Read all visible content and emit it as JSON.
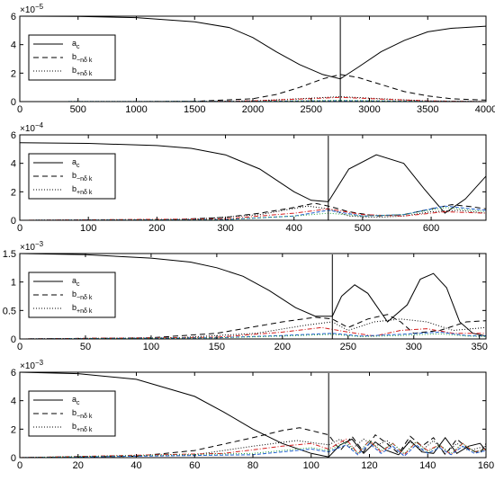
{
  "chart_data": [
    {
      "type": "line",
      "exponent": {
        "base": "×10",
        "power": "−5"
      },
      "xlim": [
        0,
        4000
      ],
      "ylim": [
        0,
        6
      ],
      "xticks": [
        "0",
        "500",
        "1000",
        "1500",
        "2000",
        "2500",
        "3000",
        "3500",
        "4000"
      ],
      "xtick_values": [
        0,
        500,
        1000,
        1500,
        2000,
        2500,
        3000,
        3500,
        4000
      ],
      "yticks": [
        "0",
        "2",
        "4",
        "6"
      ],
      "ytick_values": [
        0,
        2,
        4,
        6
      ],
      "marker_x": 2750,
      "legend": {
        "position": "center-left",
        "entries": [
          {
            "main": "a",
            "sub": "c",
            "style": "solid"
          },
          {
            "main": "b",
            "sub": "−nδ k",
            "style": "dashed"
          },
          {
            "main": "b",
            "sub": "+nδ k",
            "style": "dotted"
          }
        ]
      },
      "series": [
        {
          "color": "#000000",
          "dash": "none",
          "x": [
            0,
            500,
            1000,
            1500,
            1800,
            2000,
            2200,
            2400,
            2600,
            2750,
            2900,
            3100,
            3300,
            3500,
            3700,
            4000
          ],
          "y": [
            6.0,
            5.98,
            5.9,
            5.6,
            5.2,
            4.5,
            3.5,
            2.6,
            1.9,
            1.6,
            2.4,
            3.5,
            4.3,
            4.9,
            5.15,
            5.3
          ]
        },
        {
          "color": "#000000",
          "dash": "6,4",
          "x": [
            0,
            1000,
            1500,
            2000,
            2200,
            2400,
            2600,
            2750,
            2900,
            3100,
            3300,
            3500,
            3700,
            4000
          ],
          "y": [
            0,
            0,
            0.02,
            0.2,
            0.5,
            1.0,
            1.6,
            1.9,
            1.7,
            1.2,
            0.7,
            0.4,
            0.2,
            0.1
          ]
        },
        {
          "color": "#000000",
          "dash": "1,2",
          "x": [
            0,
            1500,
            2000,
            2400,
            2750,
            3100,
            3500,
            4000
          ],
          "y": [
            0,
            0,
            0.05,
            0.2,
            0.35,
            0.2,
            0.05,
            0
          ]
        },
        {
          "color": "#d42020",
          "dash": "5,2,1,2",
          "x": [
            0,
            1500,
            2000,
            2400,
            2750,
            3100,
            3500,
            4000
          ],
          "y": [
            0,
            0,
            0.05,
            0.18,
            0.3,
            0.18,
            0.05,
            0
          ]
        },
        {
          "color": "#2060d0",
          "dash": "4,2",
          "x": [
            0,
            2000,
            2750,
            3500,
            4000
          ],
          "y": [
            0,
            0.02,
            0.06,
            0.02,
            0
          ]
        },
        {
          "color": "#20a040",
          "dash": "1,2",
          "x": [
            0,
            2000,
            2750,
            3500,
            4000
          ],
          "y": [
            0,
            0.02,
            0.08,
            0.02,
            0
          ]
        }
      ]
    },
    {
      "type": "line",
      "exponent": {
        "base": "×10",
        "power": "−4"
      },
      "xlim": [
        0,
        680
      ],
      "ylim": [
        0,
        6
      ],
      "xticks": [
        "0",
        "100",
        "200",
        "300",
        "400",
        "500",
        "600"
      ],
      "xtick_values": [
        0,
        100,
        200,
        300,
        400,
        500,
        600
      ],
      "yticks": [
        "0",
        "2",
        "4",
        "6"
      ],
      "ytick_values": [
        0,
        2,
        4,
        6
      ],
      "marker_x": 450,
      "legend": {
        "position": "center-left",
        "entries": [
          {
            "main": "a",
            "sub": "c",
            "style": "solid"
          },
          {
            "main": "b",
            "sub": "−nδ k",
            "style": "dashed"
          },
          {
            "main": "b",
            "sub": "+nδ k",
            "style": "dotted"
          }
        ]
      },
      "series": [
        {
          "color": "#000000",
          "dash": "none",
          "x": [
            0,
            100,
            200,
            250,
            300,
            350,
            400,
            425,
            450,
            480,
            520,
            560,
            590,
            620,
            650,
            680
          ],
          "y": [
            5.45,
            5.4,
            5.25,
            5.05,
            4.6,
            3.6,
            2.0,
            1.4,
            1.3,
            3.6,
            4.6,
            4.0,
            2.2,
            0.5,
            1.5,
            3.1
          ]
        },
        {
          "color": "#000000",
          "dash": "6,4",
          "x": [
            0,
            200,
            300,
            350,
            400,
            430,
            450,
            480,
            520,
            560,
            600,
            630,
            660,
            680
          ],
          "y": [
            0,
            0,
            0.2,
            0.5,
            0.9,
            1.2,
            1.0,
            0.6,
            0.3,
            0.4,
            0.8,
            1.1,
            0.95,
            0.8
          ]
        },
        {
          "color": "#000000",
          "dash": "1,2",
          "x": [
            0,
            250,
            350,
            420,
            450,
            480,
            520,
            560,
            600,
            640,
            680
          ],
          "y": [
            0,
            0.05,
            0.4,
            1.0,
            0.8,
            0.3,
            0.2,
            0.3,
            0.6,
            0.7,
            0.5
          ]
        },
        {
          "color": "#d42020",
          "dash": "5,2,1,2",
          "x": [
            0,
            300,
            400,
            450,
            500,
            560,
            620,
            680
          ],
          "y": [
            0,
            0.1,
            0.5,
            0.8,
            0.4,
            0.3,
            0.6,
            0.5
          ]
        },
        {
          "color": "#2060d0",
          "dash": "4,2",
          "x": [
            0,
            300,
            400,
            450,
            500,
            560,
            620,
            680
          ],
          "y": [
            0,
            0.05,
            0.3,
            0.7,
            0.3,
            0.4,
            1.0,
            0.7
          ]
        },
        {
          "color": "#20a040",
          "dash": "1,2",
          "x": [
            0,
            300,
            400,
            450,
            500,
            560,
            620,
            680
          ],
          "y": [
            0,
            0.05,
            0.3,
            0.5,
            0.3,
            0.4,
            0.9,
            0.6
          ]
        }
      ]
    },
    {
      "type": "line",
      "exponent": {
        "base": "×10",
        "power": "−3"
      },
      "xlim": [
        0,
        355
      ],
      "ylim": [
        0,
        1.5
      ],
      "xticks": [
        "0",
        "50",
        "100",
        "150",
        "200",
        "250",
        "300",
        "350"
      ],
      "xtick_values": [
        0,
        50,
        100,
        150,
        200,
        250,
        300,
        350
      ],
      "yticks": [
        "0",
        "0.5",
        "1",
        "1.5"
      ],
      "ytick_values": [
        0,
        0.5,
        1,
        1.5
      ],
      "marker_x": 238,
      "legend": {
        "position": "center-left",
        "entries": [
          {
            "main": "a",
            "sub": "c",
            "style": "solid"
          },
          {
            "main": "b",
            "sub": "−nδ k",
            "style": "dashed"
          },
          {
            "main": "b",
            "sub": "+nδ k",
            "style": "dotted"
          }
        ]
      },
      "series": [
        {
          "color": "#000000",
          "dash": "none",
          "x": [
            0,
            50,
            100,
            130,
            150,
            170,
            190,
            210,
            225,
            238,
            245,
            255,
            265,
            280,
            295,
            305,
            315,
            325,
            335,
            345,
            355
          ],
          "y": [
            1.5,
            1.48,
            1.42,
            1.35,
            1.25,
            1.1,
            0.85,
            0.55,
            0.4,
            0.4,
            0.75,
            0.95,
            0.8,
            0.3,
            0.6,
            1.05,
            1.15,
            0.9,
            0.3,
            0.1,
            0.05
          ]
        },
        {
          "color": "#000000",
          "dash": "6,4",
          "x": [
            0,
            100,
            150,
            200,
            225,
            238,
            250,
            265,
            280,
            290,
            300,
            320,
            340,
            355
          ],
          "y": [
            0,
            0.02,
            0.1,
            0.3,
            0.38,
            0.35,
            0.2,
            0.35,
            0.43,
            0.3,
            0.1,
            0.15,
            0.3,
            0.32
          ]
        },
        {
          "color": "#000000",
          "dash": "1,2",
          "x": [
            0,
            120,
            180,
            220,
            238,
            250,
            270,
            290,
            310,
            330,
            355
          ],
          "y": [
            0,
            0.02,
            0.1,
            0.25,
            0.3,
            0.15,
            0.3,
            0.35,
            0.3,
            0.15,
            0.2
          ]
        },
        {
          "color": "#d42020",
          "dash": "5,2,1,2",
          "x": [
            0,
            150,
            200,
            230,
            250,
            270,
            290,
            310,
            330,
            355
          ],
          "y": [
            0,
            0.03,
            0.12,
            0.2,
            0.12,
            0.05,
            0.15,
            0.18,
            0.1,
            0.1
          ]
        },
        {
          "color": "#2060d0",
          "dash": "4,2",
          "x": [
            0,
            150,
            200,
            238,
            260,
            290,
            320,
            340,
            355
          ],
          "y": [
            0,
            0.02,
            0.06,
            0.1,
            0.05,
            0.08,
            0.12,
            0.06,
            0.05
          ]
        },
        {
          "color": "#20a040",
          "dash": "1,2",
          "x": [
            0,
            150,
            200,
            238,
            260,
            290,
            320,
            340,
            355
          ],
          "y": [
            0,
            0.02,
            0.05,
            0.08,
            0.04,
            0.06,
            0.09,
            0.05,
            0.04
          ]
        }
      ]
    },
    {
      "type": "line",
      "exponent": {
        "base": "×10",
        "power": "−3"
      },
      "xlim": [
        0,
        160
      ],
      "ylim": [
        0,
        6
      ],
      "xticks": [
        "0",
        "20",
        "40",
        "60",
        "80",
        "100",
        "120",
        "140",
        "160"
      ],
      "xtick_values": [
        0,
        20,
        40,
        60,
        80,
        100,
        120,
        140,
        160
      ],
      "yticks": [
        "0",
        "2",
        "4",
        "6"
      ],
      "ytick_values": [
        0,
        2,
        4,
        6
      ],
      "marker_x": 106,
      "legend": {
        "position": "center-left",
        "entries": [
          {
            "main": "a",
            "sub": "c",
            "style": "solid"
          },
          {
            "main": "b",
            "sub": "−nδ k",
            "style": "dashed"
          },
          {
            "main": "b",
            "sub": "+nδ k",
            "style": "dotted"
          }
        ]
      },
      "series": [
        {
          "color": "#000000",
          "dash": "none",
          "x": [
            0,
            20,
            40,
            60,
            70,
            80,
            90,
            100,
            106,
            110,
            114,
            118,
            122,
            126,
            130,
            134,
            138,
            142,
            146,
            150,
            154,
            158,
            160
          ],
          "y": [
            6.0,
            5.9,
            5.5,
            4.3,
            3.2,
            2.0,
            1.0,
            0.3,
            0.05,
            0.9,
            1.3,
            0.3,
            1.1,
            0.5,
            0.2,
            1.2,
            0.4,
            0.3,
            1.4,
            0.3,
            0.8,
            1.0,
            0.5
          ]
        },
        {
          "color": "#000000",
          "dash": "6,4",
          "x": [
            0,
            40,
            60,
            80,
            90,
            96,
            100,
            106,
            110,
            114,
            118,
            122,
            126,
            130,
            134,
            138,
            142,
            146,
            150,
            154,
            158,
            160
          ],
          "y": [
            0,
            0.1,
            0.5,
            1.4,
            1.9,
            2.1,
            1.9,
            1.6,
            0.5,
            1.5,
            0.4,
            1.6,
            1.0,
            0.3,
            1.5,
            0.8,
            1.4,
            0.2,
            1.3,
            0.6,
            0.3,
            1.0
          ]
        },
        {
          "color": "#000000",
          "dash": "1,2",
          "x": [
            0,
            60,
            80,
            95,
            106,
            110,
            114,
            118,
            122,
            126,
            130,
            134,
            138,
            142,
            146,
            150,
            154,
            158,
            160
          ],
          "y": [
            0,
            0.2,
            0.8,
            1.2,
            0.9,
            1.3,
            0.6,
            1.3,
            0.8,
            1.2,
            0.4,
            1.1,
            0.5,
            1.2,
            0.3,
            1.0,
            0.5,
            0.7,
            0.8
          ]
        },
        {
          "color": "#d42020",
          "dash": "5,2,1,2",
          "x": [
            0,
            70,
            90,
            100,
            106,
            112,
            116,
            120,
            124,
            128,
            132,
            136,
            140,
            144,
            148,
            152,
            156,
            160
          ],
          "y": [
            0,
            0.3,
            0.8,
            1.0,
            0.6,
            1.3,
            0.3,
            1.2,
            0.4,
            1.0,
            0.2,
            1.1,
            0.5,
            0.9,
            0.2,
            1.0,
            0.4,
            0.6
          ]
        },
        {
          "color": "#2060d0",
          "dash": "4,2",
          "x": [
            0,
            80,
            100,
            106,
            112,
            116,
            120,
            124,
            128,
            132,
            136,
            140,
            144,
            148,
            152,
            156,
            160
          ],
          "y": [
            0,
            0.2,
            0.6,
            0.4,
            0.9,
            0.2,
            1.0,
            0.3,
            0.8,
            0.1,
            0.9,
            0.3,
            0.7,
            0.2,
            0.8,
            0.3,
            0.5
          ]
        },
        {
          "color": "#20a040",
          "dash": "1,2",
          "x": [
            0,
            80,
            100,
            106,
            112,
            116,
            120,
            124,
            128,
            132,
            136,
            140,
            144,
            148,
            152,
            156,
            160
          ],
          "y": [
            0,
            0.3,
            0.7,
            0.5,
            1.1,
            0.3,
            1.2,
            0.5,
            1.0,
            0.3,
            1.1,
            0.4,
            0.9,
            0.3,
            1.0,
            0.4,
            0.6
          ]
        }
      ]
    }
  ]
}
